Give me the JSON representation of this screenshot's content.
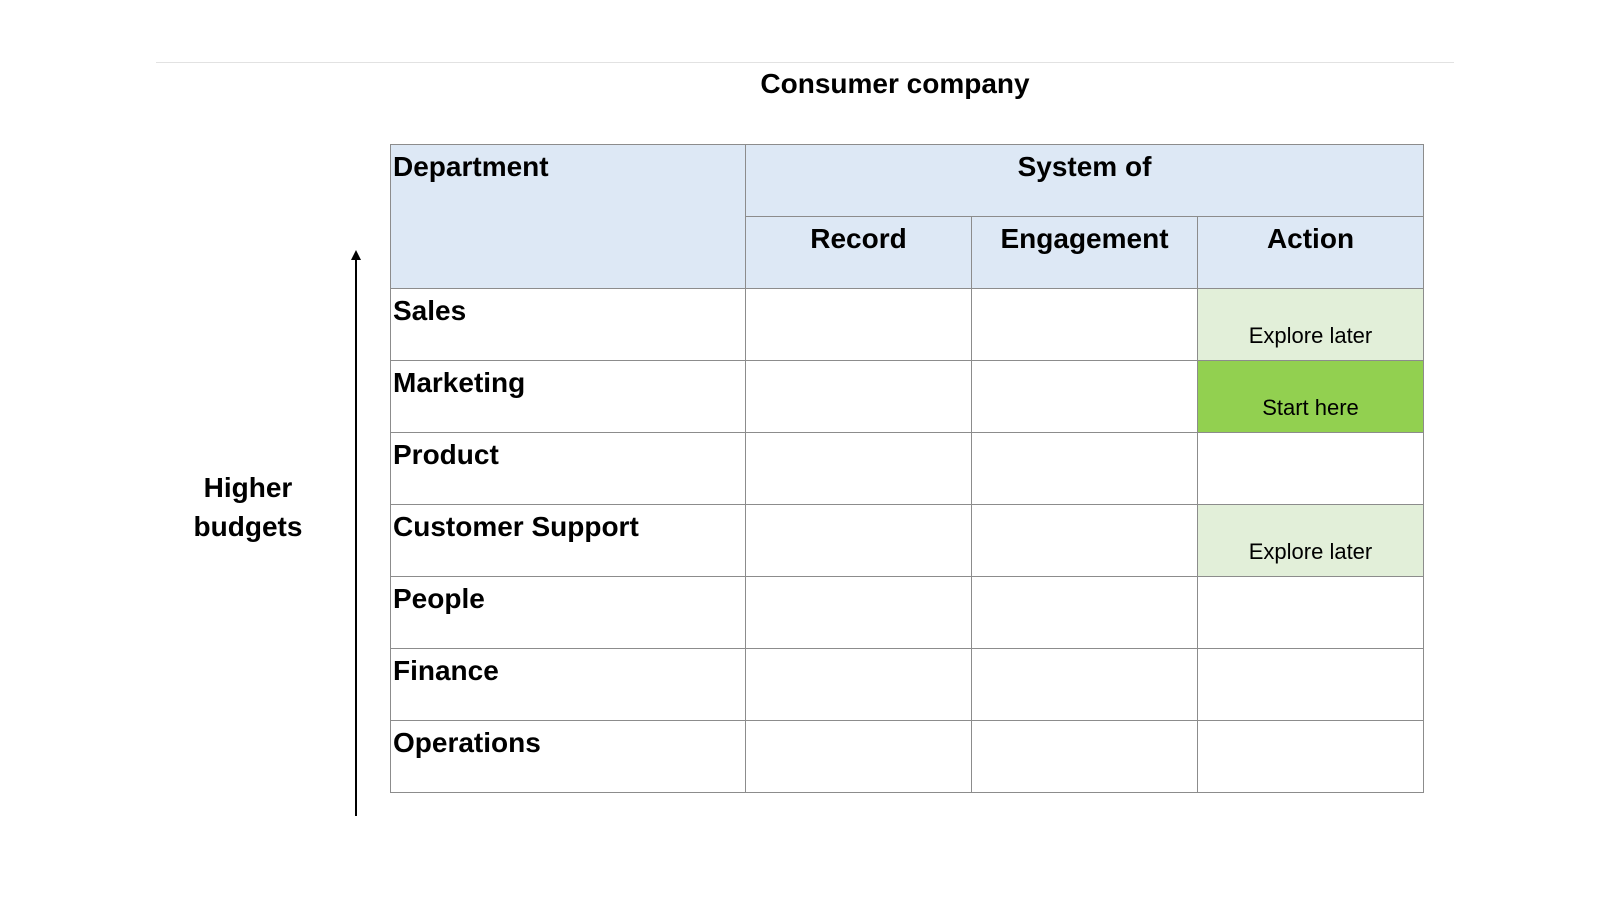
{
  "title": "Consumer company",
  "axis_label": "Higher budgets",
  "colors": {
    "header_fill": "#dde8f5",
    "explore_later_fill": "#e2efd9",
    "start_here_fill": "#92d050",
    "grid_line": "#8c8c8c"
  },
  "table": {
    "department_header": "Department",
    "group_header": "System of",
    "columns": [
      "Record",
      "Engagement",
      "Action"
    ],
    "rows": [
      {
        "department": "Sales",
        "record": "",
        "engagement": "",
        "action": "Explore later"
      },
      {
        "department": "Marketing",
        "record": "",
        "engagement": "",
        "action": "Start here"
      },
      {
        "department": "Product",
        "record": "",
        "engagement": "",
        "action": ""
      },
      {
        "department": "Customer Support",
        "record": "",
        "engagement": "",
        "action": "Explore later"
      },
      {
        "department": "People",
        "record": "",
        "engagement": "",
        "action": ""
      },
      {
        "department": "Finance",
        "record": "",
        "engagement": "",
        "action": ""
      },
      {
        "department": "Operations",
        "record": "",
        "engagement": "",
        "action": ""
      }
    ]
  }
}
